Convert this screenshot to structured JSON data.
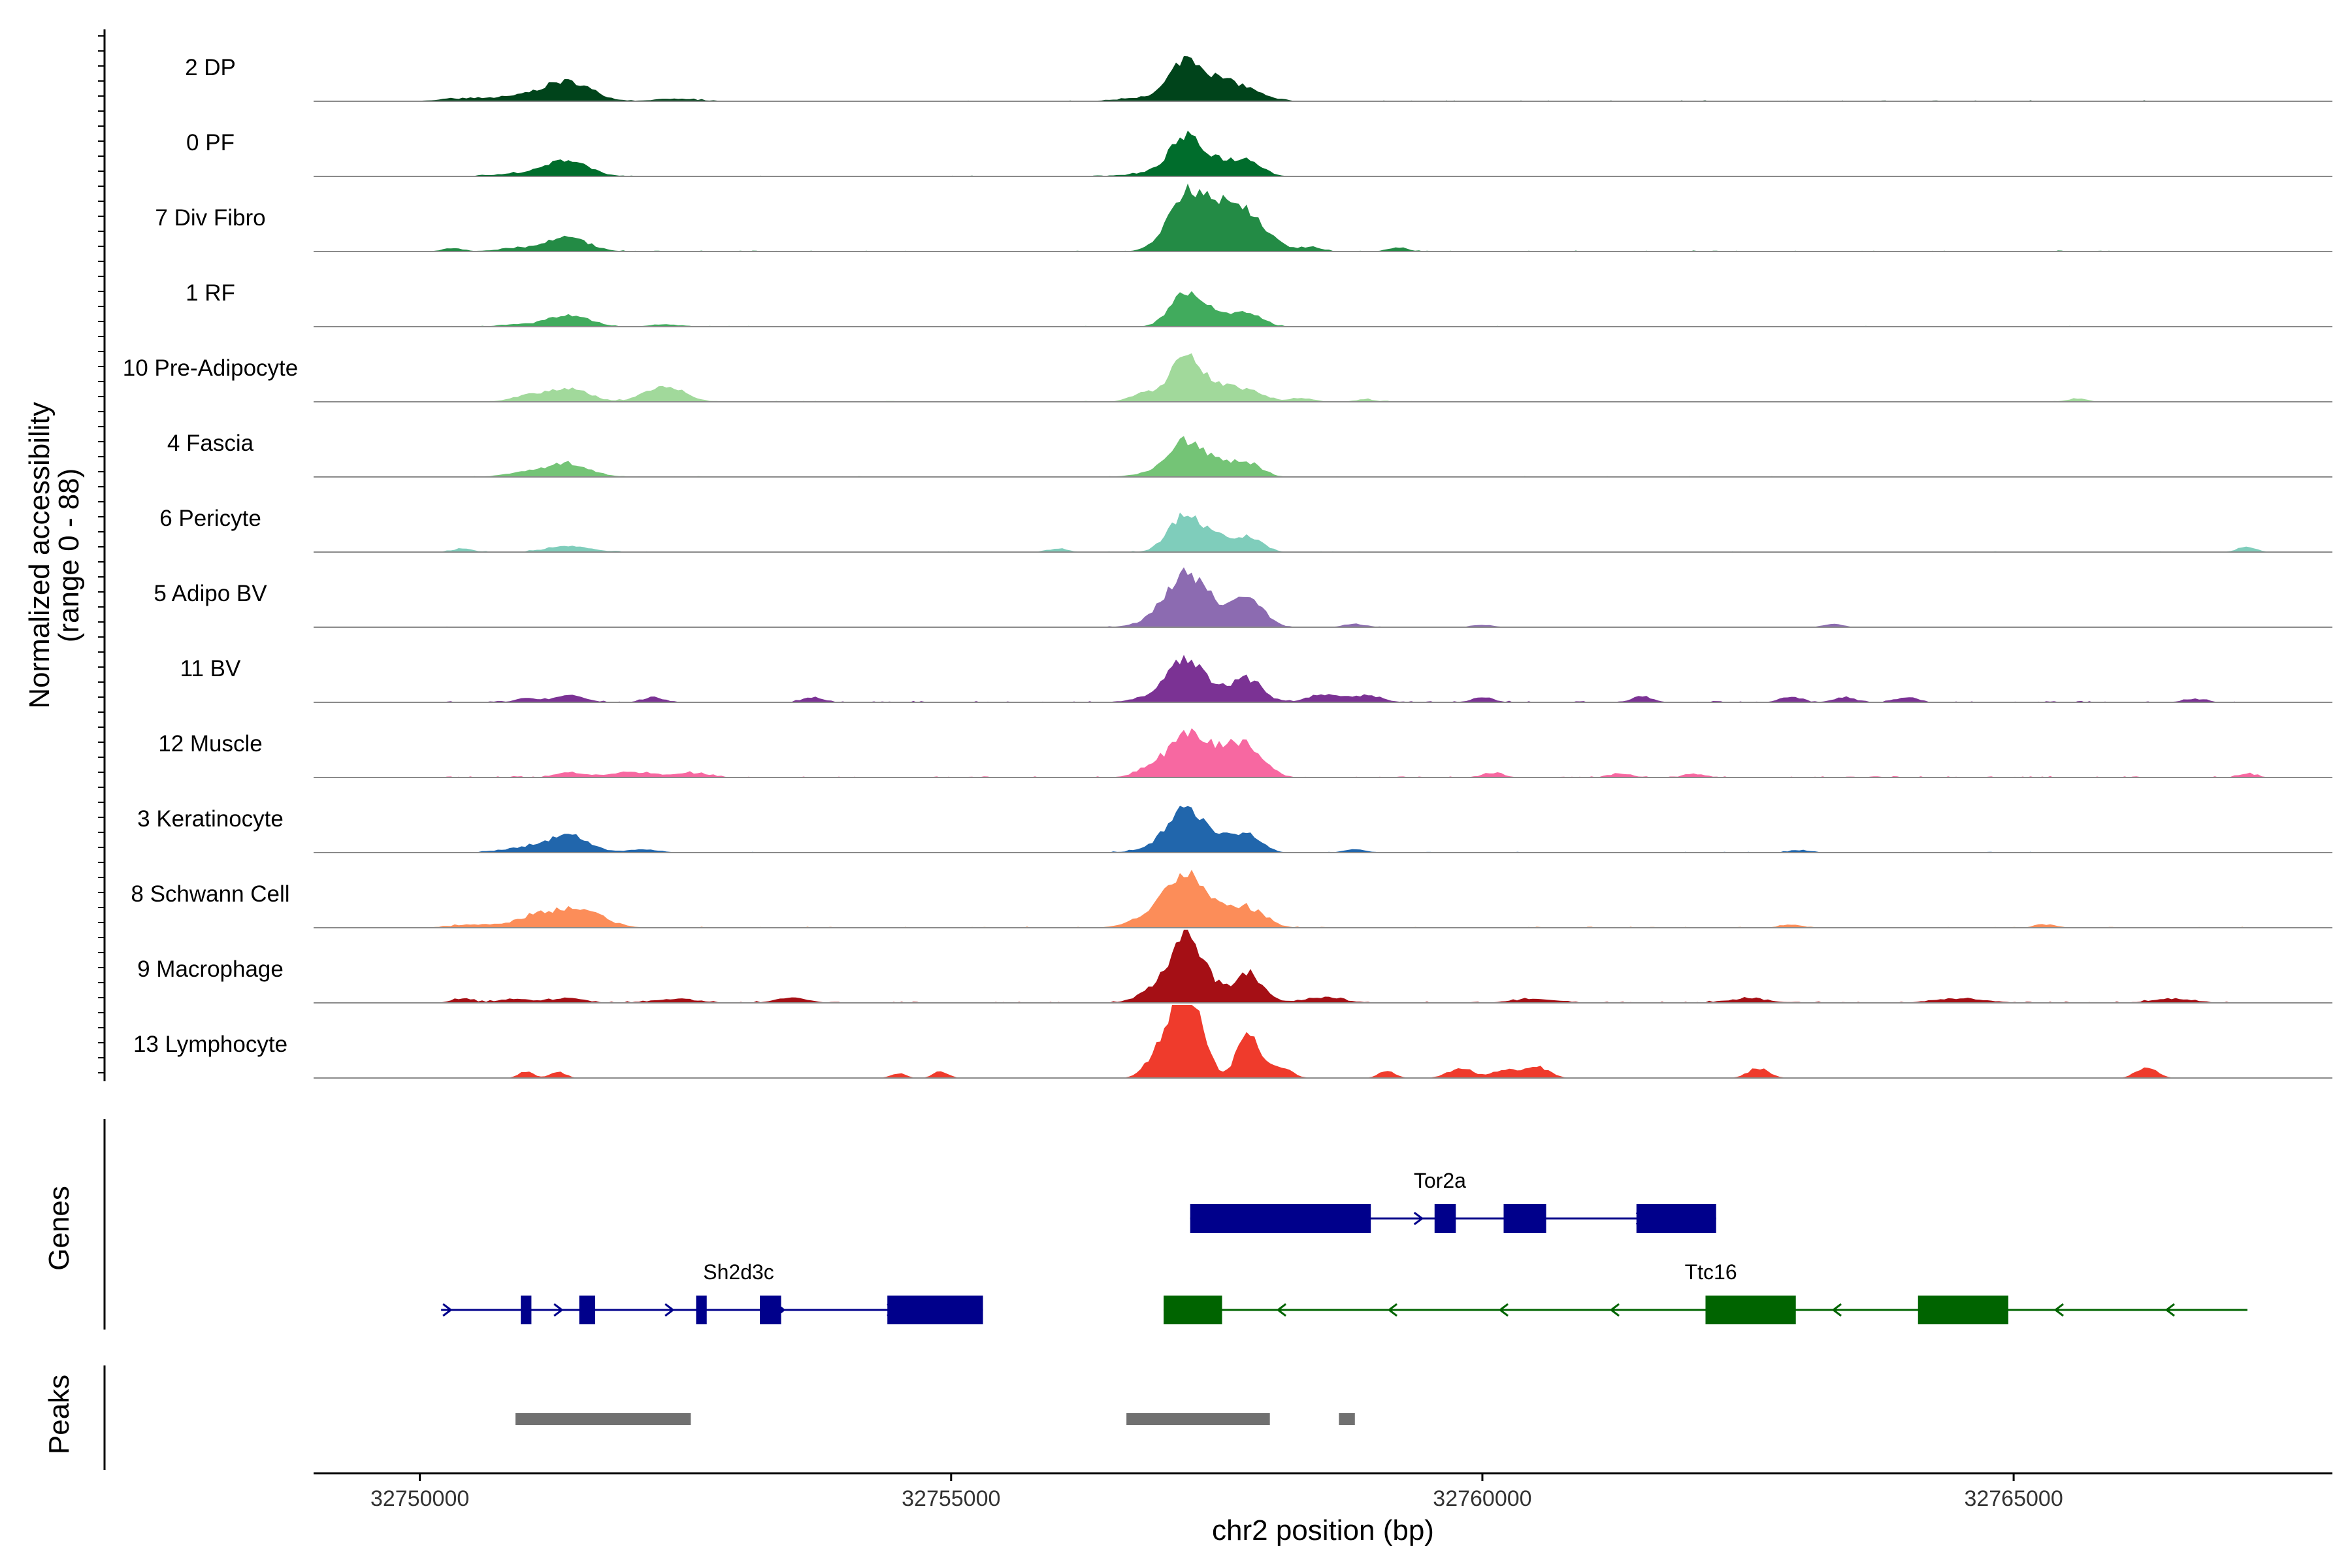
{
  "chart_data": {
    "type": "area",
    "title": "",
    "chromosome": "chr2",
    "xlabel": "chr2 position (bp)",
    "xlim": [
      32749000,
      32768000
    ],
    "x_ticks": [
      {
        "value": 32750000,
        "label": "32750000"
      },
      {
        "value": 32755000,
        "label": "32755000"
      },
      {
        "value": 32760000,
        "label": "32760000"
      },
      {
        "value": 32765000,
        "label": "32765000"
      }
    ],
    "ylabel_line1": "Normalized accessibility",
    "ylabel_line2": "(range 0 - 88)",
    "y_range": [
      0,
      88
    ],
    "genes_label": "Genes",
    "peaks_label": "Peaks",
    "series": [
      {
        "name": "2 DP",
        "color": "#00441b",
        "peaks": [
          [
            32751400,
            22,
            220
          ],
          [
            32751000,
            6,
            260
          ],
          [
            32757200,
            40,
            140
          ],
          [
            32757450,
            20,
            180
          ],
          [
            32757750,
            14,
            180
          ],
          [
            32757000,
            6,
            300
          ],
          [
            32750400,
            3,
            220
          ],
          [
            32752400,
            3,
            200
          ]
        ],
        "noise_start": 32750200,
        "noise_end": 32767300,
        "noise_level": 1.4
      },
      {
        "name": "0 PF",
        "color": "#006d2c",
        "peaks": [
          [
            32751400,
            19,
            190
          ],
          [
            32751000,
            4,
            250
          ],
          [
            32757200,
            42,
            140
          ],
          [
            32757500,
            18,
            140
          ],
          [
            32757800,
            19,
            130
          ],
          [
            32757000,
            6,
            250
          ]
        ],
        "noise_start": 32750200,
        "noise_end": 32759600,
        "noise_level": 1.2
      },
      {
        "name": "7 Div Fibro",
        "color": "#238b45",
        "peaks": [
          [
            32751400,
            16,
            190
          ],
          [
            32751000,
            4,
            250
          ],
          [
            32750300,
            4,
            90
          ],
          [
            32757200,
            54,
            170
          ],
          [
            32757500,
            42,
            240
          ],
          [
            32757800,
            30,
            200
          ],
          [
            32758400,
            5,
            100
          ],
          [
            32759200,
            4,
            100
          ]
        ],
        "noise_start": 32750200,
        "noise_end": 32767300,
        "noise_level": 1.5
      },
      {
        "name": "1 RF",
        "color": "#41ab5d",
        "peaks": [
          [
            32751400,
            14,
            190
          ],
          [
            32750900,
            3,
            150
          ],
          [
            32757200,
            42,
            140
          ],
          [
            32757500,
            14,
            140
          ],
          [
            32757800,
            16,
            130
          ],
          [
            32752300,
            3,
            130
          ]
        ],
        "noise_start": 32750200,
        "noise_end": 32767300,
        "noise_level": 1.2
      },
      {
        "name": "10 Pre-Adipocyte",
        "color": "#a1d99b",
        "peaks": [
          [
            32751400,
            17,
            180
          ],
          [
            32751000,
            7,
            150
          ],
          [
            32752300,
            20,
            180
          ],
          [
            32756800,
            10,
            120
          ],
          [
            32757200,
            50,
            150
          ],
          [
            32757500,
            16,
            160
          ],
          [
            32757800,
            12,
            150
          ],
          [
            32758300,
            4,
            120
          ],
          [
            32758900,
            3,
            100
          ],
          [
            32765600,
            4,
            90
          ]
        ],
        "noise_start": 32750200,
        "noise_end": 32767300,
        "noise_level": 1.3
      },
      {
        "name": "4 Fascia",
        "color": "#74c476",
        "peaks": [
          [
            32751400,
            16,
            200
          ],
          [
            32751000,
            5,
            200
          ],
          [
            32757200,
            38,
            140
          ],
          [
            32757500,
            18,
            140
          ],
          [
            32757800,
            16,
            130
          ],
          [
            32757000,
            8,
            200
          ]
        ],
        "noise_start": 32750200,
        "noise_end": 32767300,
        "noise_level": 1.2
      },
      {
        "name": "6 Pericyte",
        "color": "#7fcdbb",
        "peaks": [
          [
            32751400,
            7,
            200
          ],
          [
            32750400,
            4,
            100
          ],
          [
            32757200,
            45,
            150
          ],
          [
            32757500,
            15,
            140
          ],
          [
            32757800,
            17,
            130
          ],
          [
            32767200,
            6,
            90
          ],
          [
            32756000,
            4,
            100
          ]
        ],
        "noise_start": 32750200,
        "noise_end": 32767300,
        "noise_level": 1.2
      },
      {
        "name": "5 Adipo BV",
        "color": "#8c6bb1",
        "peaks": [
          [
            32757200,
            55,
            170
          ],
          [
            32757450,
            18,
            150
          ],
          [
            32757800,
            37,
            140
          ],
          [
            32757000,
            10,
            200
          ],
          [
            32760000,
            3,
            100
          ],
          [
            32763300,
            4,
            90
          ],
          [
            32758800,
            4,
            100
          ]
        ],
        "noise_start": 32750200,
        "noise_end": 32767300,
        "noise_level": 1.0
      },
      {
        "name": "11 BV",
        "color": "#7b3294",
        "peaks": [
          [
            32757200,
            45,
            150
          ],
          [
            32757500,
            16,
            150
          ],
          [
            32757800,
            26,
            130
          ],
          [
            32757000,
            10,
            200
          ],
          [
            32751400,
            8,
            150
          ],
          [
            32752200,
            6,
            100
          ],
          [
            32753700,
            6,
            100
          ],
          [
            32758500,
            9,
            150
          ],
          [
            32758900,
            8,
            150
          ],
          [
            32760000,
            6,
            100
          ],
          [
            32761500,
            7,
            100
          ],
          [
            32762900,
            7,
            100
          ],
          [
            32763400,
            6,
            100
          ],
          [
            32764000,
            6,
            100
          ],
          [
            32766700,
            4,
            100
          ],
          [
            32751000,
            5,
            100
          ]
        ],
        "noise_start": 32750200,
        "noise_end": 32767300,
        "noise_level": 2.0
      },
      {
        "name": "12 Muscle",
        "color": "#f768a1",
        "peaks": [
          [
            32757200,
            44,
            150
          ],
          [
            32757500,
            30,
            170
          ],
          [
            32757800,
            33,
            150
          ],
          [
            32756900,
            12,
            150
          ],
          [
            32751400,
            6,
            120
          ],
          [
            32752000,
            6,
            250
          ],
          [
            32752600,
            5,
            150
          ],
          [
            32760100,
            5,
            100
          ],
          [
            32761300,
            5,
            100
          ],
          [
            32762000,
            4,
            100
          ],
          [
            32767200,
            4,
            90
          ]
        ],
        "noise_start": 32750200,
        "noise_end": 32767300,
        "noise_level": 2.0
      },
      {
        "name": "3 Keratinocyte",
        "color": "#2166ac",
        "peaks": [
          [
            32751400,
            20,
            190
          ],
          [
            32751000,
            6,
            200
          ],
          [
            32752100,
            4,
            150
          ],
          [
            32757200,
            50,
            150
          ],
          [
            32757500,
            18,
            150
          ],
          [
            32757800,
            20,
            130
          ],
          [
            32757000,
            8,
            200
          ],
          [
            32758800,
            4,
            100
          ],
          [
            32763000,
            3,
            100
          ]
        ],
        "noise_start": 32750200,
        "noise_end": 32767300,
        "noise_level": 1.2
      },
      {
        "name": "8 Schwann Cell",
        "color": "#fc8d59",
        "peaks": [
          [
            32751100,
            13,
            200
          ],
          [
            32751500,
            21,
            220
          ],
          [
            32750500,
            4,
            200
          ],
          [
            32757200,
            60,
            170
          ],
          [
            32757500,
            18,
            160
          ],
          [
            32757800,
            22,
            160
          ],
          [
            32756900,
            14,
            200
          ],
          [
            32762900,
            4,
            100
          ],
          [
            32765300,
            4,
            100
          ]
        ],
        "noise_start": 32750200,
        "noise_end": 32767300,
        "noise_level": 1.6
      },
      {
        "name": "9 Macrophage",
        "color": "#a50f15",
        "peaks": [
          [
            32757200,
            78,
            140
          ],
          [
            32757450,
            18,
            120
          ],
          [
            32757800,
            36,
            130
          ],
          [
            32756900,
            14,
            150
          ],
          [
            32751400,
            6,
            150
          ],
          [
            32752400,
            5,
            200
          ],
          [
            32753500,
            6,
            150
          ],
          [
            32758500,
            6,
            200
          ],
          [
            32760500,
            5,
            200
          ],
          [
            32762500,
            5,
            200
          ],
          [
            32764500,
            5,
            250
          ],
          [
            32766500,
            5,
            200
          ],
          [
            32750400,
            5,
            100
          ],
          [
            32750900,
            5,
            150
          ]
        ],
        "noise_start": 32750200,
        "noise_end": 32767300,
        "noise_level": 2.0
      },
      {
        "name": "13 Lymphocyte",
        "color": "#ef3b2c",
        "peaks": [
          [
            32757100,
            72,
            110
          ],
          [
            32757300,
            70,
            110
          ],
          [
            32757800,
            60,
            100
          ],
          [
            32756900,
            18,
            100
          ],
          [
            32758100,
            14,
            100
          ],
          [
            32751000,
            8,
            70
          ],
          [
            32751300,
            8,
            70
          ],
          [
            32754500,
            6,
            70
          ],
          [
            32754900,
            8,
            70
          ],
          [
            32759100,
            8,
            80
          ],
          [
            32759800,
            12,
            120
          ],
          [
            32760200,
            10,
            100
          ],
          [
            32760500,
            14,
            120
          ],
          [
            32762600,
            12,
            100
          ],
          [
            32766200,
            8,
            80
          ],
          [
            32766300,
            8,
            80
          ]
        ],
        "noise_start": 32750200,
        "noise_end": 32767300,
        "noise_level": 0.0
      }
    ],
    "genes": [
      {
        "name": "Tor2a",
        "strand": "+",
        "row": 0,
        "color": "#00008b",
        "start": 32757250,
        "end": 32762200,
        "exons": [
          [
            32757250,
            32758950
          ],
          [
            32759550,
            32759750
          ],
          [
            32760200,
            32760600
          ],
          [
            32761450,
            32762200
          ]
        ]
      },
      {
        "name": "Sh2d3c",
        "strand": "+",
        "row": 1,
        "color": "#00008b",
        "start": 32750200,
        "end": 32755300,
        "exons": [
          [
            32750950,
            32751050
          ],
          [
            32751500,
            32751650
          ],
          [
            32752600,
            32752700
          ],
          [
            32753200,
            32753400
          ],
          [
            32754400,
            32755300
          ]
        ]
      },
      {
        "name": "Ttc16",
        "strand": "-",
        "row": 1,
        "color": "#006400",
        "start": 32757000,
        "end": 32767200,
        "exons": [
          [
            32757000,
            32757550
          ],
          [
            32762100,
            32762950
          ],
          [
            32764100,
            32764950
          ]
        ]
      }
    ],
    "peak_regions": [
      [
        32750900,
        32752550
      ],
      [
        32756650,
        32758000
      ],
      [
        32758650,
        32758800
      ]
    ]
  }
}
